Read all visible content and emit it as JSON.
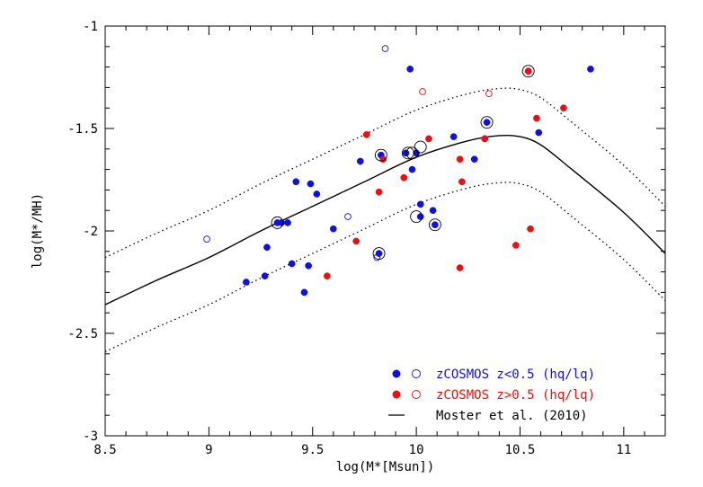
{
  "chart_data": {
    "type": "scatter",
    "xlabel": "log(M*[Msun])",
    "ylabel": "log(M*/MH)",
    "xlim": [
      8.5,
      11.2
    ],
    "ylim": [
      -3.0,
      -1.0
    ],
    "xticks": [
      8.5,
      9,
      9.5,
      10,
      10.5,
      11
    ],
    "xtick_labels": [
      "8.5",
      "9",
      "9.5",
      "10",
      "10.5",
      "11"
    ],
    "yticks": [
      -3,
      -2.5,
      -2,
      -1.5,
      -1
    ],
    "ytick_labels": [
      "-3",
      "-2.5",
      "-2",
      "-1.5",
      "-1"
    ],
    "colors": {
      "blue": "#1010e0",
      "red": "#e81010",
      "black": "#000000"
    },
    "legend": [
      {
        "label": "zCOSMOS z<0.5 (hq/lq)",
        "color": "#1010e0",
        "marker": "filled+open"
      },
      {
        "label": "zCOSMOS z>0.5 (hq/lq)",
        "color": "#e81010",
        "marker": "filled+open"
      },
      {
        "label": "Moster et al. (2010)",
        "color": "#000000",
        "marker": "line"
      }
    ],
    "series": [
      {
        "name": "zCOSMOS z<0.5 hq",
        "color": "#1010e0",
        "filled": true,
        "x": [
          9.18,
          9.27,
          9.28,
          9.33,
          9.35,
          9.38,
          9.4,
          9.42,
          9.46,
          9.48,
          9.49,
          9.52,
          9.6,
          9.73,
          9.82,
          9.83,
          9.95,
          9.98,
          10.0,
          10.02,
          10.02,
          10.09,
          10.18,
          10.28,
          10.33,
          10.34,
          10.54,
          10.59,
          10.84,
          9.97,
          10.08
        ],
        "y": [
          -2.25,
          -2.22,
          -2.08,
          -1.96,
          -1.96,
          -1.96,
          -2.16,
          -1.76,
          -2.3,
          -2.17,
          -1.77,
          -1.82,
          -1.99,
          -1.66,
          -2.11,
          -1.63,
          -1.62,
          -1.7,
          -1.62,
          -1.87,
          -1.93,
          -1.97,
          -1.54,
          -1.65,
          -1.55,
          -1.47,
          -1.22,
          -1.52,
          -1.21,
          -1.21,
          -1.9
        ]
      },
      {
        "name": "zCOSMOS z<0.5 lq",
        "color": "#1010e0",
        "filled": false,
        "x": [
          8.99,
          9.67,
          9.81,
          9.85
        ],
        "y": [
          -2.04,
          -1.93,
          -2.13,
          -1.11
        ]
      },
      {
        "name": "zCOSMOS z>0.5 hq",
        "color": "#e81010",
        "filled": true,
        "x": [
          9.57,
          9.71,
          9.76,
          9.82,
          9.84,
          9.94,
          10.06,
          10.21,
          10.21,
          10.22,
          10.33,
          10.48,
          10.54,
          10.55,
          10.58,
          10.71
        ],
        "y": [
          -2.22,
          -2.05,
          -1.53,
          -1.81,
          -1.65,
          -1.74,
          -1.55,
          -1.65,
          -2.18,
          -1.76,
          -1.55,
          -2.07,
          -1.22,
          -1.99,
          -1.45,
          -1.4
        ]
      },
      {
        "name": "zCOSMOS z>0.5 lq",
        "color": "#e81010",
        "filled": false,
        "x": [
          10.03,
          10.35
        ],
        "y": [
          -1.32,
          -1.33
        ]
      },
      {
        "name": "highlighted (ringed)",
        "color": "#000000",
        "filled": false,
        "x": [
          9.33,
          9.83,
          9.82,
          9.96,
          9.98,
          10.0,
          10.02,
          10.09,
          10.34,
          10.54
        ],
        "y": [
          -1.96,
          -1.63,
          -2.11,
          -1.62,
          -1.62,
          -1.93,
          -1.59,
          -1.97,
          -1.47,
          -1.22
        ]
      }
    ],
    "model_curve": {
      "name": "Moster et al. (2010)",
      "x": [
        8.5,
        8.75,
        9.0,
        9.25,
        9.5,
        9.75,
        10.0,
        10.25,
        10.4,
        10.5,
        10.6,
        10.75,
        11.0,
        11.2
      ],
      "y": [
        -2.36,
        -2.24,
        -2.13,
        -2.0,
        -1.88,
        -1.76,
        -1.64,
        -1.56,
        -1.535,
        -1.54,
        -1.58,
        -1.7,
        -1.91,
        -2.11
      ],
      "scatter_offset": 0.23
    }
  }
}
